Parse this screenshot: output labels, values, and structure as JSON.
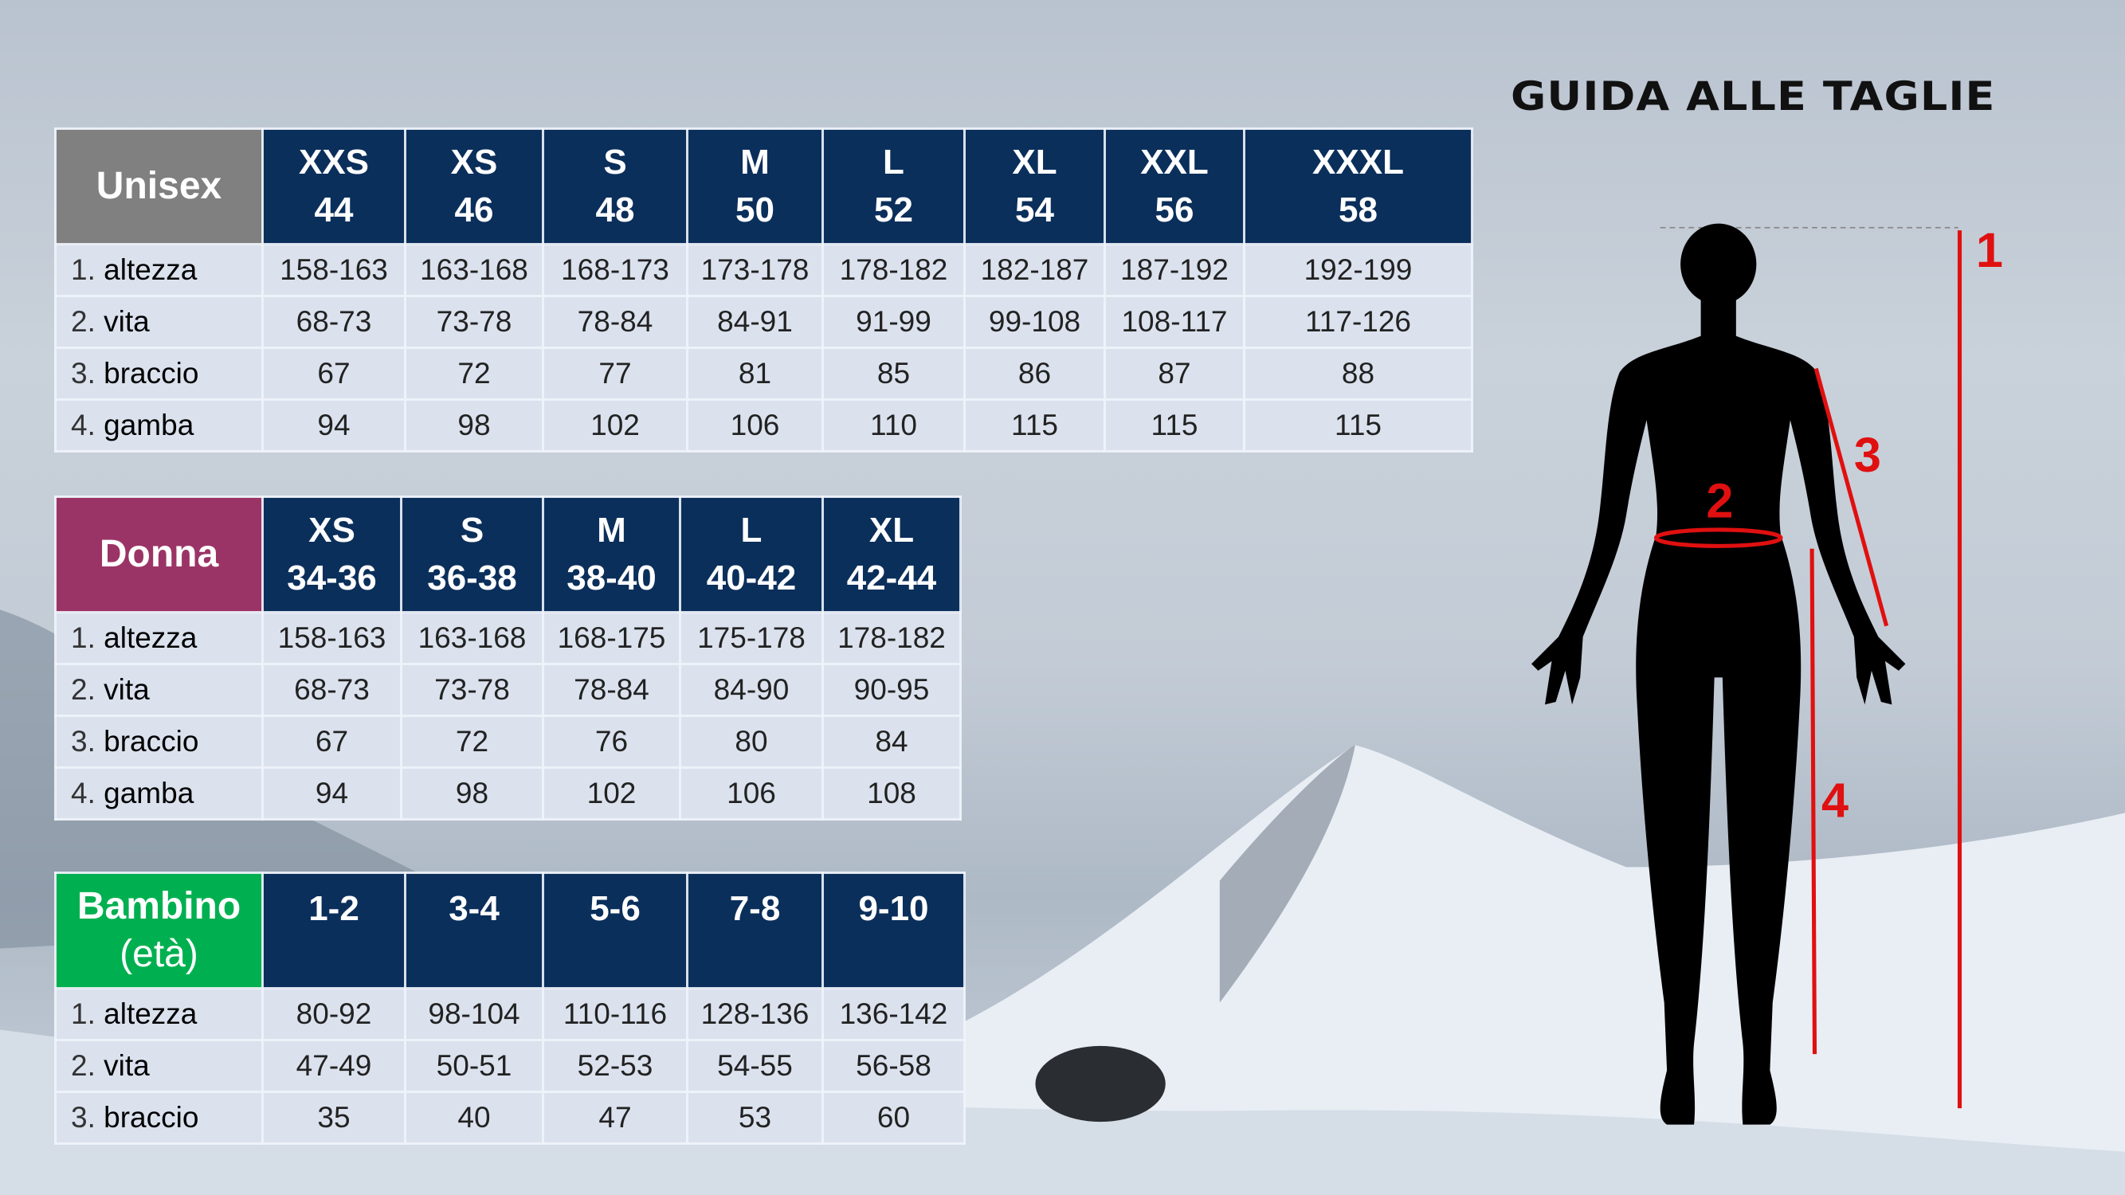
{
  "title": "GUIDA ALLE TAGLIE",
  "colors": {
    "header": "#0b2f5b",
    "unisex": "#808080",
    "donna": "#9b3466",
    "bambino": "#00b050",
    "cell": "#dbe2ee",
    "measure_lines": "#e01010"
  },
  "tables": [
    {
      "label": "Unisex",
      "sizes": [
        [
          "XXS",
          "44"
        ],
        [
          "XS",
          "46"
        ],
        [
          "S",
          "48"
        ],
        [
          "M",
          "50"
        ],
        [
          "L",
          "52"
        ],
        [
          "XL",
          "54"
        ],
        [
          "XXL",
          "56"
        ],
        [
          "XXXL",
          "58"
        ]
      ],
      "rows": [
        {
          "num": "1.",
          "label": "altezza",
          "values": [
            "158-163",
            "163-168",
            "168-173",
            "173-178",
            "178-182",
            "182-187",
            "187-192",
            "192-199"
          ]
        },
        {
          "num": "2.",
          "label": "vita",
          "values": [
            "68-73",
            "73-78",
            "78-84",
            "84-91",
            "91-99",
            "99-108",
            "108-117",
            "117-126"
          ]
        },
        {
          "num": "3.",
          "label": "braccio",
          "values": [
            "67",
            "72",
            "77",
            "81",
            "85",
            "86",
            "87",
            "88"
          ]
        },
        {
          "num": "4.",
          "label": "gamba",
          "values": [
            "94",
            "98",
            "102",
            "106",
            "110",
            "115",
            "115",
            "115"
          ]
        }
      ]
    },
    {
      "label": "Donna",
      "sizes": [
        [
          "XS",
          "34-36"
        ],
        [
          "S",
          "36-38"
        ],
        [
          "M",
          "38-40"
        ],
        [
          "L",
          "40-42"
        ],
        [
          "XL",
          "42-44"
        ]
      ],
      "rows": [
        {
          "num": "1.",
          "label": "altezza",
          "values": [
            "158-163",
            "163-168",
            "168-175",
            "175-178",
            "178-182"
          ]
        },
        {
          "num": "2.",
          "label": "vita",
          "values": [
            "68-73",
            "73-78",
            "78-84",
            "84-90",
            "90-95"
          ]
        },
        {
          "num": "3.",
          "label": "braccio",
          "values": [
            "67",
            "72",
            "76",
            "80",
            "84"
          ]
        },
        {
          "num": "4.",
          "label": "gamba",
          "values": [
            "94",
            "98",
            "102",
            "106",
            "108"
          ]
        }
      ]
    },
    {
      "label": "Bambino",
      "label2": "(età)",
      "sizes": [
        [
          "1-2"
        ],
        [
          "3-4"
        ],
        [
          "5-6"
        ],
        [
          "7-8"
        ],
        [
          "9-10"
        ]
      ],
      "rows": [
        {
          "num": "1.",
          "label": "altezza",
          "values": [
            "80-92",
            "98-104",
            "110-116",
            "128-136",
            "136-142"
          ]
        },
        {
          "num": "2.",
          "label": "vita",
          "values": [
            "47-49",
            "50-51",
            "52-53",
            "54-55",
            "56-58"
          ]
        },
        {
          "num": "3.",
          "label": "braccio",
          "values": [
            "35",
            "40",
            "47",
            "53",
            "60"
          ]
        }
      ]
    }
  ],
  "figure": {
    "markers": [
      "1",
      "2",
      "3",
      "4"
    ]
  }
}
